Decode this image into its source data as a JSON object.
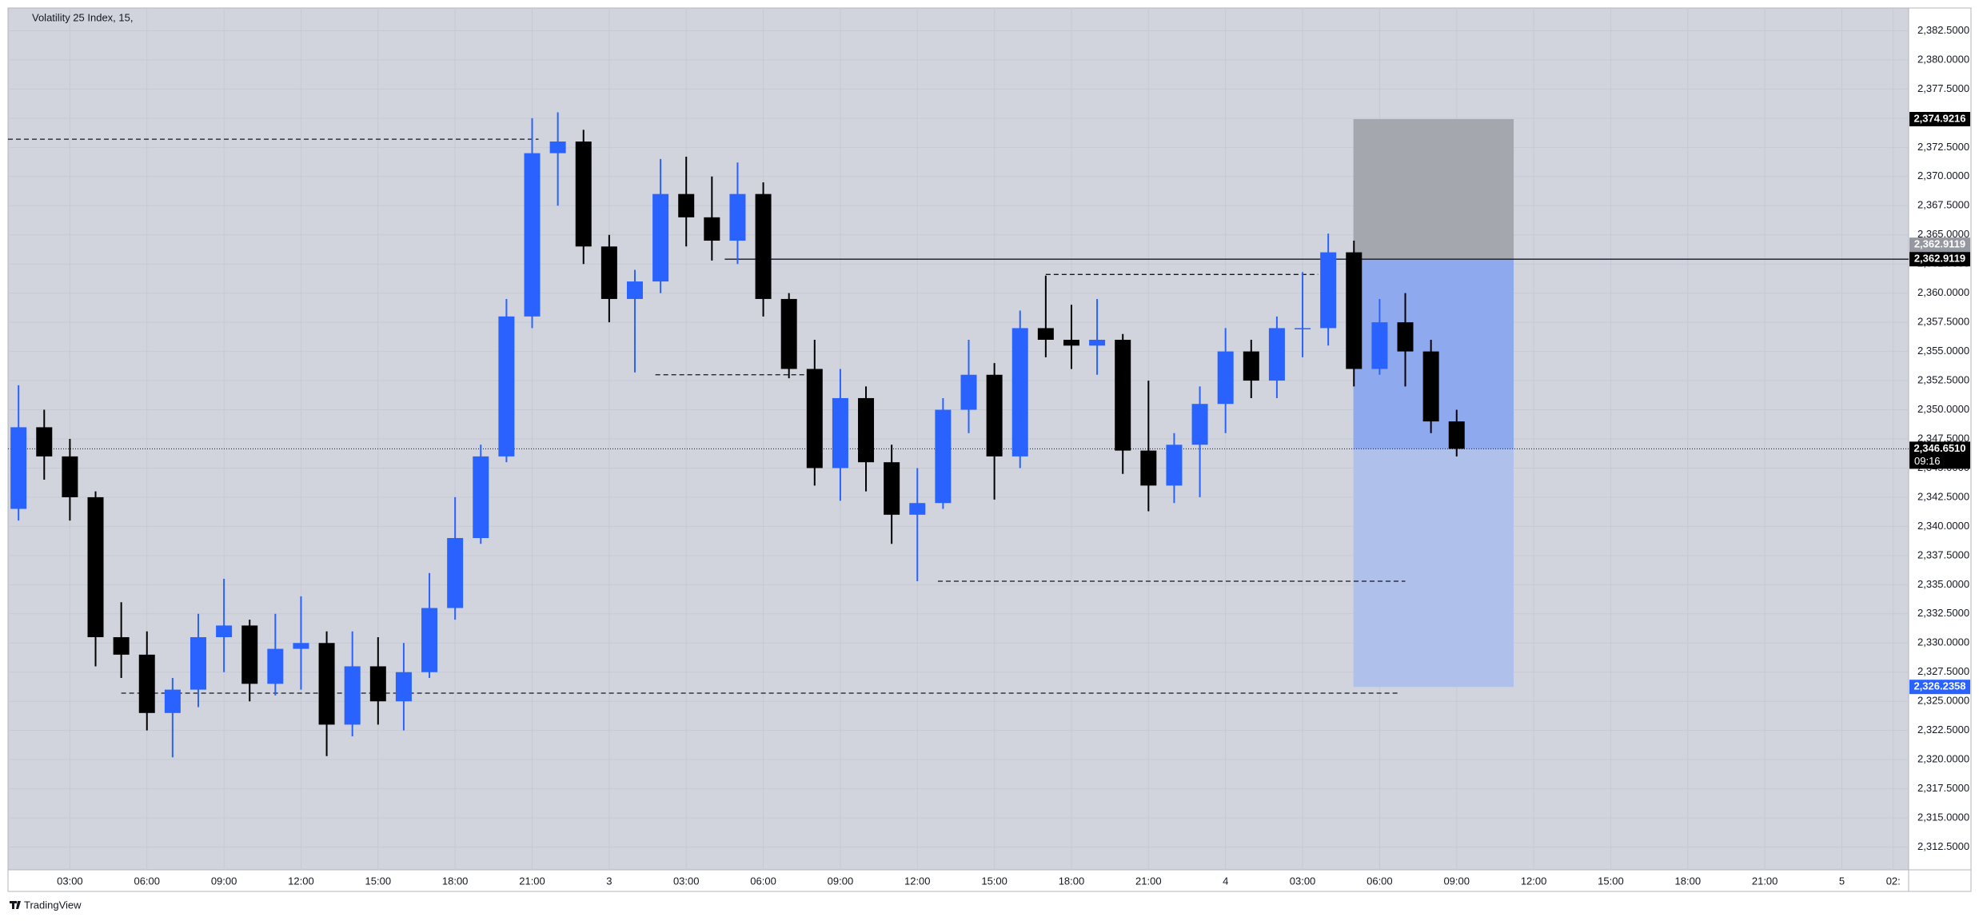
{
  "chart_data": {
    "type": "candlestick",
    "title": "Volatility 25 Index, 15,",
    "x": [
      1,
      2,
      3,
      4,
      5,
      6,
      7,
      8,
      9,
      10,
      11,
      12,
      13,
      14,
      15,
      16,
      17,
      18,
      19,
      20,
      21,
      22,
      23,
      24,
      25,
      26,
      27,
      28,
      29,
      30,
      31,
      32,
      33,
      34,
      35,
      36,
      37,
      38,
      39,
      40,
      41,
      42,
      43,
      44,
      45,
      46,
      47,
      48,
      49,
      50,
      51,
      52,
      53,
      54,
      55,
      56,
      57
    ],
    "open": [
      2341.5,
      2348.5,
      2346,
      2342.5,
      2330.5,
      2329,
      2324,
      2326,
      2330.5,
      2331.5,
      2326.5,
      2329.5,
      2330,
      2323,
      2328,
      2325,
      2327.5,
      2333,
      2339,
      2346,
      2358,
      2372,
      2373,
      2364,
      2359.5,
      2361,
      2368.5,
      2366.5,
      2364.5,
      2368.5,
      2359.5,
      2353.5,
      2345,
      2351,
      2345.5,
      2341,
      2342,
      2350,
      2353,
      2346,
      2357,
      2356,
      2355.5,
      2356,
      2346.5,
      2343.5,
      2347,
      2350.5,
      2355,
      2352.5,
      2357,
      2357,
      2363.5,
      2353.5,
      2357.5,
      2355,
      2349
    ],
    "high": [
      2352.1,
      2350,
      2347.5,
      2343,
      2333.5,
      2331,
      2327,
      2332.5,
      2335.5,
      2332,
      2332.5,
      2334,
      2331,
      2331,
      2330.5,
      2330,
      2336,
      2342.5,
      2347,
      2359.5,
      2375,
      2375.5,
      2374,
      2365,
      2362,
      2371.5,
      2371.7,
      2370,
      2371.2,
      2369.5,
      2360,
      2356,
      2353.5,
      2352,
      2347,
      2345,
      2351,
      2356,
      2354,
      2358.5,
      2361.5,
      2359,
      2359.5,
      2356.5,
      2352.5,
      2348,
      2352,
      2357,
      2356,
      2358,
      2361.8,
      2365.1,
      2364.5,
      2359.5,
      2360,
      2356,
      2350
    ],
    "low": [
      2340.5,
      2344,
      2340.5,
      2328,
      2327,
      2322.5,
      2320.2,
      2324.5,
      2327.5,
      2325,
      2325.5,
      2326,
      2320.3,
      2322,
      2323,
      2322.5,
      2327,
      2332,
      2338.5,
      2345.5,
      2357,
      2367.5,
      2362.5,
      2357.5,
      2353.2,
      2360,
      2364,
      2362.8,
      2362.5,
      2358,
      2352.7,
      2343.5,
      2342.2,
      2343,
      2338.5,
      2335.3,
      2341.5,
      2348,
      2342.3,
      2345,
      2354.5,
      2353.5,
      2353,
      2344.5,
      2341.3,
      2342,
      2342.5,
      2348,
      2351,
      2351,
      2354.5,
      2355.5,
      2352,
      2353,
      2352,
      2348,
      2346
    ],
    "close": [
      2348.5,
      2346,
      2342.5,
      2330.5,
      2329,
      2324,
      2326,
      2330.5,
      2331.5,
      2326.5,
      2329.5,
      2330,
      2323,
      2328,
      2325,
      2327.5,
      2333,
      2339,
      2346,
      2358,
      2372,
      2373,
      2364,
      2359.5,
      2361,
      2368.5,
      2366.5,
      2364.5,
      2368.5,
      2359.5,
      2353.5,
      2345,
      2351,
      2345.5,
      2341,
      2342,
      2350,
      2353,
      2346,
      2357,
      2356,
      2355.5,
      2356,
      2346.5,
      2343.5,
      2347,
      2350.5,
      2355,
      2352.5,
      2357,
      2357,
      2363.5,
      2353.5,
      2357.5,
      2355,
      2349,
      2346.651
    ],
    "up_color": "#2962ff",
    "down_color": "#000000",
    "xlim": [
      0.59,
      74.6
    ],
    "xticks": [
      {
        "value": 3,
        "label": "03:00"
      },
      {
        "value": 6,
        "label": "06:00"
      },
      {
        "value": 9,
        "label": "09:00"
      },
      {
        "value": 12,
        "label": "12:00"
      },
      {
        "value": 15,
        "label": "15:00"
      },
      {
        "value": 18,
        "label": "18:00"
      },
      {
        "value": 21,
        "label": "21:00"
      },
      {
        "value": 24,
        "label": "3"
      },
      {
        "value": 27,
        "label": "03:00"
      },
      {
        "value": 30,
        "label": "06:00"
      },
      {
        "value": 33,
        "label": "09:00"
      },
      {
        "value": 36,
        "label": "12:00"
      },
      {
        "value": 39,
        "label": "15:00"
      },
      {
        "value": 42,
        "label": "18:00"
      },
      {
        "value": 45,
        "label": "21:00"
      },
      {
        "value": 48,
        "label": "4"
      },
      {
        "value": 51,
        "label": "03:00"
      },
      {
        "value": 54,
        "label": "06:00"
      },
      {
        "value": 57,
        "label": "09:00"
      },
      {
        "value": 60,
        "label": "12:00"
      },
      {
        "value": 63,
        "label": "15:00"
      },
      {
        "value": 66,
        "label": "18:00"
      },
      {
        "value": 69,
        "label": "21:00"
      },
      {
        "value": 72,
        "label": "5"
      },
      {
        "value": 74,
        "label": "02:"
      }
    ],
    "ylim": [
      2310.55,
      2384.45
    ],
    "yticks": [
      {
        "value": 2312.5,
        "label": "2,312.5000"
      },
      {
        "value": 2315,
        "label": "2,315.0000"
      },
      {
        "value": 2317.5,
        "label": "2,317.5000"
      },
      {
        "value": 2320,
        "label": "2,320.0000"
      },
      {
        "value": 2322.5,
        "label": "2,322.5000"
      },
      {
        "value": 2325,
        "label": "2,325.0000"
      },
      {
        "value": 2327.5,
        "label": "2,327.5000"
      },
      {
        "value": 2330,
        "label": "2,330.0000"
      },
      {
        "value": 2332.5,
        "label": "2,332.5000"
      },
      {
        "value": 2335,
        "label": "2,335.0000"
      },
      {
        "value": 2337.5,
        "label": "2,337.5000"
      },
      {
        "value": 2340,
        "label": "2,340.0000"
      },
      {
        "value": 2342.5,
        "label": "2,342.5000"
      },
      {
        "value": 2345,
        "label": "2,345.0000"
      },
      {
        "value": 2347.5,
        "label": "2,347.5000"
      },
      {
        "value": 2350,
        "label": "2,350.0000"
      },
      {
        "value": 2352.5,
        "label": "2,352.5000"
      },
      {
        "value": 2355,
        "label": "2,355.0000"
      },
      {
        "value": 2357.5,
        "label": "2,357.5000"
      },
      {
        "value": 2360,
        "label": "2,360.0000"
      },
      {
        "value": 2362.5,
        "label": "2,362.5000"
      },
      {
        "value": 2365,
        "label": "2,365.0000"
      },
      {
        "value": 2367.5,
        "label": "2,367.5000"
      },
      {
        "value": 2370,
        "label": "2,370.0000"
      },
      {
        "value": 2372.5,
        "label": "2,372.5000"
      },
      {
        "value": 2375,
        "label": "2,375.0000"
      },
      {
        "value": 2377.5,
        "label": "2,377.5000"
      },
      {
        "value": 2380,
        "label": "2,380.0000"
      },
      {
        "value": 2382.5,
        "label": "2,382.5000"
      }
    ],
    "grid": true,
    "levels": [
      {
        "start": 0.59,
        "end": 21.25,
        "price": 2373.2
      },
      {
        "start": 25.8,
        "end": 31.9,
        "price": 2353
      },
      {
        "start": 41,
        "end": 51.6,
        "price": 2361.6
      },
      {
        "start": 36.8,
        "end": 55,
        "price": 2335.3
      },
      {
        "start": 5,
        "end": 54.8,
        "price": 2325.7
      }
    ],
    "position": {
      "start": 52.98,
      "end": 59.22,
      "line_start": 28.5,
      "stop": {
        "value": 2374.9216,
        "label": "2,374.9216"
      },
      "entry": {
        "value": 2362.9119,
        "label": "2,362.9119"
      },
      "target": {
        "value": 2326.2358,
        "label": "2,326.2358"
      }
    },
    "last_price": {
      "value": 2346.651,
      "label": "2,346.6510"
    },
    "countdown": "09:16"
  },
  "brand": "TradingView"
}
